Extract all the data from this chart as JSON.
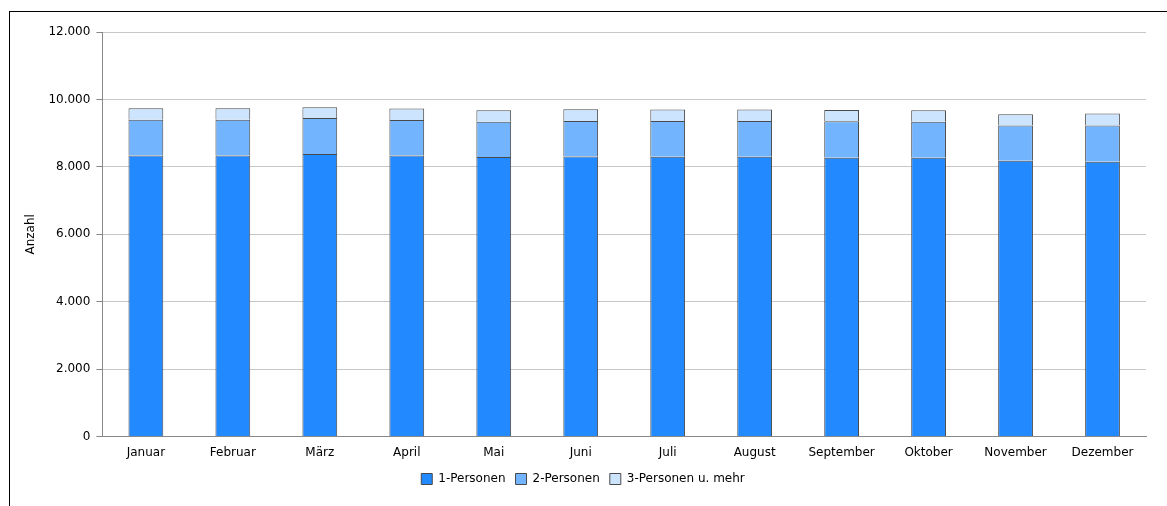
{
  "chart_data": {
    "type": "bar",
    "stacked": true,
    "ylabel": "Anzahl",
    "categories": [
      "Januar",
      "Februar",
      "März",
      "April",
      "Mai",
      "Juni",
      "Juli",
      "August",
      "September",
      "Oktober",
      "November",
      "Dezember"
    ],
    "series": [
      {
        "name": "1-Personen",
        "color": "#2389fe",
        "values": [
          8340,
          8340,
          8380,
          8340,
          8290,
          8310,
          8300,
          8300,
          8270,
          8270,
          8180,
          8150
        ]
      },
      {
        "name": "2-Personen",
        "color": "#73b4fe",
        "values": [
          1060,
          1060,
          1070,
          1050,
          1050,
          1050,
          1060,
          1060,
          1080,
          1070,
          1050,
          1080
        ]
      },
      {
        "name": "3-Personen u. mehr",
        "color": "#cde4fe",
        "values": [
          340,
          340,
          320,
          340,
          340,
          350,
          340,
          340,
          340,
          340,
          330,
          350
        ]
      }
    ],
    "ylim": [
      0,
      12000
    ],
    "yticks": [
      0,
      {
        "value": 2000,
        "label": "2.000"
      },
      {
        "value": 4000,
        "label": "4.000"
      },
      {
        "value": 6000,
        "label": "6.000"
      },
      {
        "value": 8000,
        "label": "8.000"
      },
      {
        "value": 10000,
        "label": "10.000"
      },
      {
        "value": 12000,
        "label": "12.000"
      }
    ],
    "grid": "y",
    "legend": "bottom"
  }
}
